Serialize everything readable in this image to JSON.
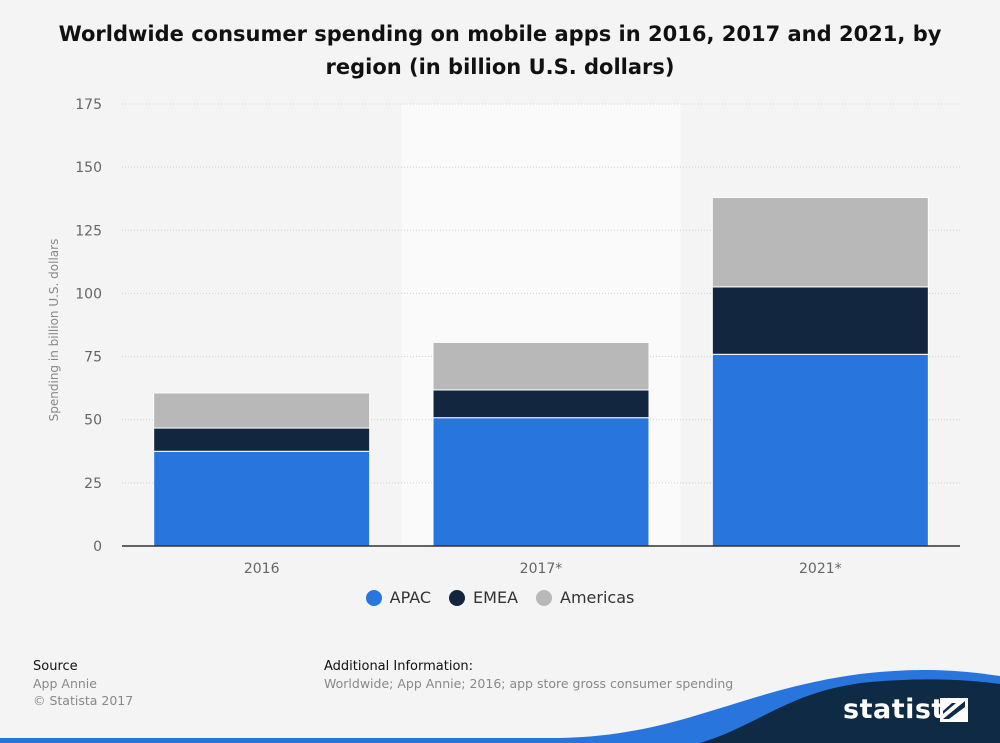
{
  "chart_data": {
    "type": "bar",
    "stacked": true,
    "title": "Worldwide consumer spending on mobile apps in 2016, 2017 and 2021, by region (in billion U.S. dollars)",
    "ylabel": "Spending in billion U.S. dollars",
    "xlabel": "",
    "categories": [
      "2016",
      "2017*",
      "2021*"
    ],
    "ylim": [
      0,
      175
    ],
    "yticks": [
      0,
      25,
      50,
      75,
      100,
      125,
      150,
      175
    ],
    "ytick_labels": [
      "0",
      "25",
      "50",
      "75",
      "100",
      "125",
      "150",
      "175"
    ],
    "grid": true,
    "legend_position": "bottom",
    "highlighted_category": "2017*",
    "series": [
      {
        "name": "APAC",
        "color": "#2876dd",
        "values": [
          37.5,
          50.8,
          75.9
        ]
      },
      {
        "name": "EMEA",
        "color": "#12263f",
        "values": [
          9.2,
          11.0,
          26.7
        ]
      },
      {
        "name": "Americas",
        "color": "#b8b8b8",
        "values": [
          13.9,
          18.8,
          35.4
        ]
      }
    ]
  },
  "source": {
    "heading": "Source",
    "lines": [
      "App Annie",
      "© Statista 2017"
    ]
  },
  "additional_info": {
    "heading": "Additional Information:",
    "text": "Worldwide; App Annie; 2016; app store gross consumer spending"
  },
  "brand": {
    "name": "statista",
    "accent_color": "#2876dd",
    "dark_color": "#0f2a45",
    "logo_icon": "statista-logo-icon"
  }
}
